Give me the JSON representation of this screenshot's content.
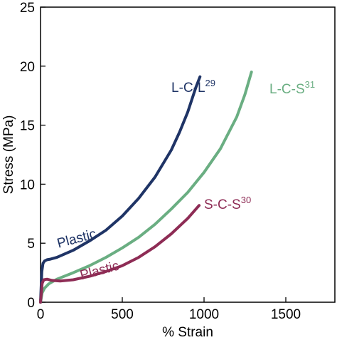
{
  "chart_data": {
    "type": "line",
    "title": "",
    "xlabel": "% Strain",
    "ylabel": "Stress (MPa)",
    "xlim": [
      0,
      1800
    ],
    "ylim": [
      0,
      25
    ],
    "xticks": [
      0,
      500,
      1000,
      1500
    ],
    "yticks": [
      0,
      5,
      10,
      15,
      20,
      25
    ],
    "grid": false,
    "series": [
      {
        "label_main": "L-C-L",
        "label_sup": "29",
        "color": "#1f3466",
        "x": [
          0,
          8,
          15,
          25,
          40,
          60,
          100,
          150,
          200,
          300,
          400,
          500,
          600,
          700,
          800,
          850,
          900,
          950,
          975
        ],
        "y": [
          0,
          2.6,
          3.3,
          3.5,
          3.6,
          3.65,
          3.8,
          4.1,
          4.4,
          5.2,
          6.1,
          7.3,
          8.8,
          10.6,
          12.9,
          14.4,
          16.1,
          18.2,
          19.1
        ]
      },
      {
        "label_main": "L-C-S",
        "label_sup": "31",
        "color": "#6aae82",
        "x": [
          0,
          10,
          25,
          50,
          100,
          200,
          300,
          400,
          500,
          600,
          700,
          800,
          900,
          1000,
          1100,
          1200,
          1250,
          1290
        ],
        "y": [
          0,
          0.8,
          1.2,
          1.55,
          1.95,
          2.5,
          3.1,
          3.8,
          4.6,
          5.5,
          6.6,
          7.9,
          9.3,
          11.0,
          13.0,
          15.7,
          17.6,
          19.5
        ]
      },
      {
        "label_main": "S-C-S",
        "label_sup": "30",
        "color": "#8e2c55",
        "x": [
          0,
          10,
          20,
          40,
          70,
          120,
          200,
          300,
          400,
          500,
          600,
          700,
          800,
          900,
          970
        ],
        "y": [
          0,
          1.6,
          1.9,
          1.95,
          1.85,
          1.8,
          1.9,
          2.2,
          2.6,
          3.1,
          3.8,
          4.7,
          5.8,
          7.1,
          8.2
        ]
      }
    ],
    "annotations": [
      {
        "text": "Plastic",
        "color": "#1f3466",
        "x": 110,
        "y": 4.6,
        "rotate": -15
      },
      {
        "text": "Plastic",
        "color": "#8e2c55",
        "x": 250,
        "y": 1.9,
        "rotate": -15
      }
    ],
    "series_labels": [
      {
        "series": 0,
        "x": 800,
        "y": 17.8
      },
      {
        "series": 1,
        "x": 1400,
        "y": 17.7
      },
      {
        "series": 2,
        "x": 1000,
        "y": 7.9
      }
    ]
  }
}
